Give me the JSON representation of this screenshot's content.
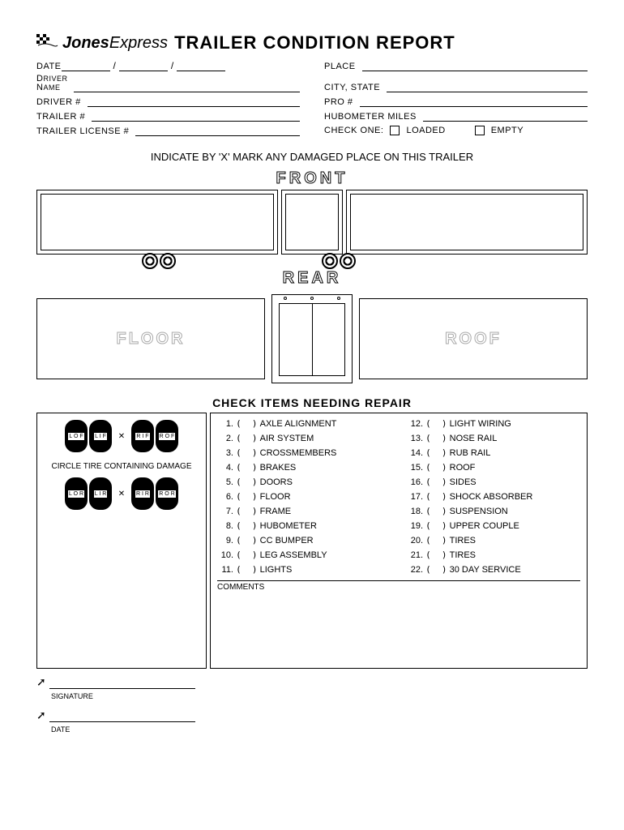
{
  "logo": {
    "brand1": "Jones",
    "brand2": "Express"
  },
  "title": "TRAILER CONDITION REPORT",
  "fields": {
    "date": "DATE",
    "place": "PLACE",
    "driver_name": "DRIVER NAME",
    "city_state": "CITY, STATE",
    "driver_num": "DRIVER #",
    "pro_num": "PRO #",
    "trailer_num": "TRAILER #",
    "hubometer": "HUBOMETER MILES",
    "trailer_license": "TRAILER LICENSE #",
    "check_one": "CHECK ONE:",
    "loaded": "LOADED",
    "empty": "EMPTY"
  },
  "instruction": "INDICATE BY 'X' MARK ANY DAMAGED PLACE ON THIS TRAILER",
  "diagram": {
    "front": "FRONT",
    "rear": "REAR",
    "floor": "FLOOR",
    "roof": "ROOF"
  },
  "repair_title": "CHECK ITEMS NEEDING REPAIR",
  "tire_labels": {
    "lof": "L\nO\nF",
    "lif": "L\nI\nF",
    "rif": "R\nI\nF",
    "rof": "R\nO\nF",
    "lor": "L\nO\nR",
    "lir": "L\nI\nR",
    "rir": "R\nI\nR",
    "ror": "R\nO\nR"
  },
  "tire_caption": "CIRCLE TIRE CONTAINING DAMAGE",
  "items_left": [
    {
      "n": "1",
      "name": "AXLE ALIGNMENT"
    },
    {
      "n": "2",
      "name": "AIR SYSTEM"
    },
    {
      "n": "3",
      "name": "CROSSMEMBERS"
    },
    {
      "n": "4",
      "name": "BRAKES"
    },
    {
      "n": "5",
      "name": "DOORS"
    },
    {
      "n": "6",
      "name": "FLOOR"
    },
    {
      "n": "7",
      "name": "FRAME"
    },
    {
      "n": "8",
      "name": "HUBOMETER"
    },
    {
      "n": "9",
      "name": "CC BUMPER"
    },
    {
      "n": "10",
      "name": "LEG ASSEMBLY"
    },
    {
      "n": "11",
      "name": "LIGHTS"
    }
  ],
  "items_right": [
    {
      "n": "12",
      "name": "LIGHT WIRING"
    },
    {
      "n": "13",
      "name": "NOSE RAIL"
    },
    {
      "n": "14",
      "name": "RUB RAIL"
    },
    {
      "n": "15",
      "name": "ROOF"
    },
    {
      "n": "16",
      "name": "SIDES"
    },
    {
      "n": "17",
      "name": "SHOCK ABSORBER"
    },
    {
      "n": "18",
      "name": "SUSPENSION"
    },
    {
      "n": "19",
      "name": "UPPER COUPLE"
    },
    {
      "n": "20",
      "name": "TIRES"
    },
    {
      "n": "21",
      "name": "TIRES"
    },
    {
      "n": "22",
      "name": "30 DAY SERVICE"
    }
  ],
  "comments": "COMMENTS",
  "signature": "SIGNATURE",
  "sig_date": "DATE"
}
